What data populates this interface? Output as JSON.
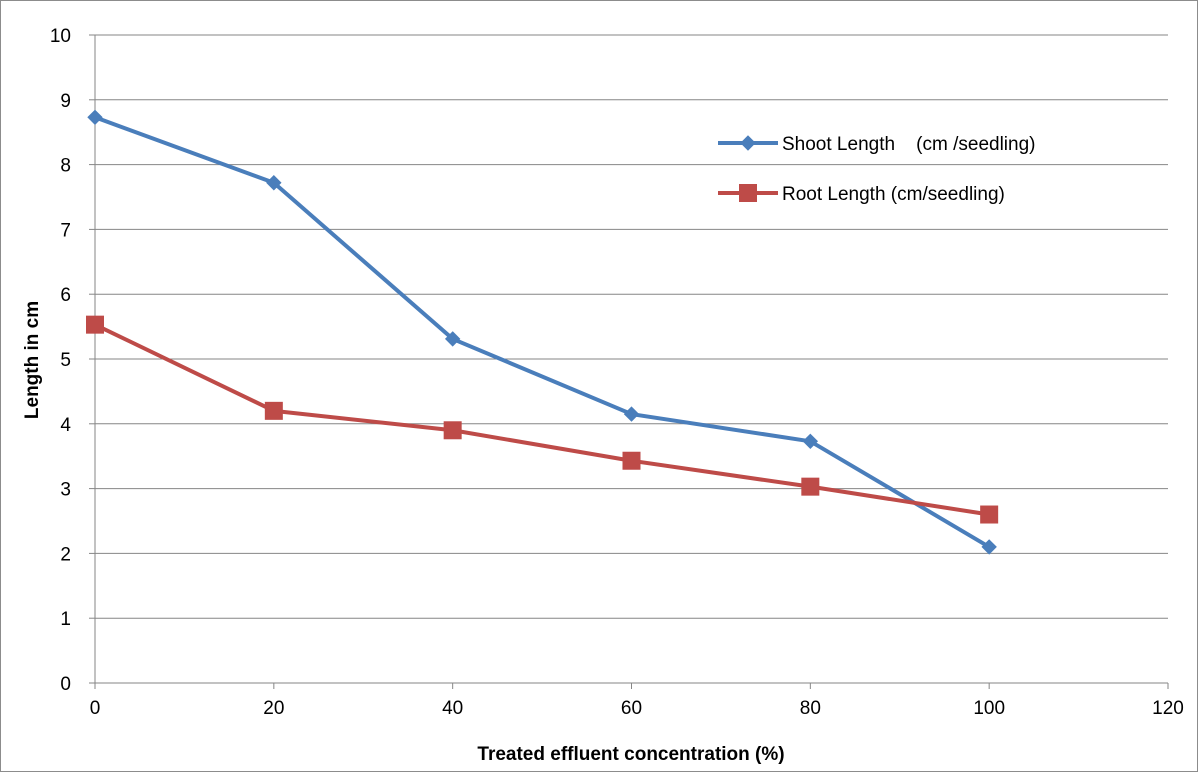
{
  "chart_data": {
    "type": "line",
    "title": "",
    "xlabel": "Treated effluent concentration (%)",
    "ylabel": "Length in cm",
    "xlim": [
      0,
      120
    ],
    "ylim": [
      0,
      10
    ],
    "x_ticks": [
      "0",
      "20",
      "40",
      "60",
      "80",
      "100",
      "120"
    ],
    "y_ticks": [
      "0",
      "1",
      "2",
      "3",
      "4",
      "5",
      "6",
      "7",
      "8",
      "9",
      "10"
    ],
    "x_tick_values": [
      0,
      20,
      40,
      60,
      80,
      100,
      120
    ],
    "y_tick_values": [
      0,
      1,
      2,
      3,
      4,
      5,
      6,
      7,
      8,
      9,
      10
    ],
    "grid": "horizontal",
    "legend_position": "top-right",
    "series": [
      {
        "name": "Shoot Length    (cm /seedling)",
        "color": "#4a7ebb",
        "marker": "diamond",
        "x": [
          0,
          20,
          40,
          60,
          80,
          100
        ],
        "y": [
          8.73,
          7.72,
          5.31,
          4.15,
          3.73,
          2.1
        ]
      },
      {
        "name": "Root Length (cm/seedling)",
        "color": "#be4b48",
        "marker": "square",
        "x": [
          0,
          20,
          40,
          60,
          80,
          100
        ],
        "y": [
          5.53,
          4.2,
          3.9,
          3.43,
          3.03,
          2.6
        ]
      }
    ]
  }
}
